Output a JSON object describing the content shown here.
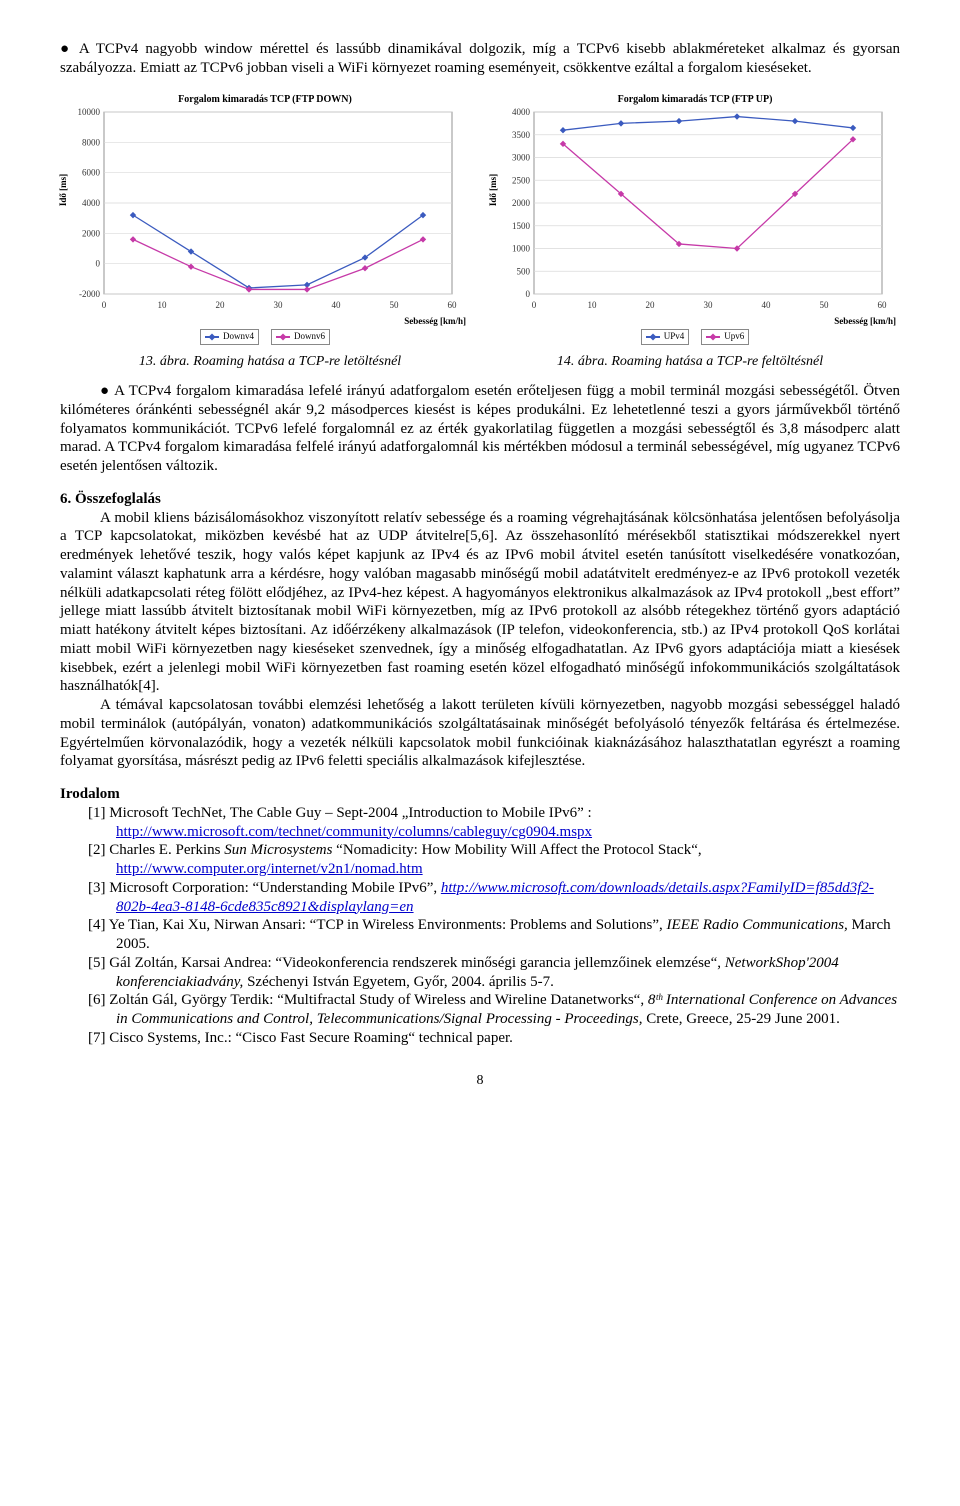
{
  "bullet1": "● A TCPv4 nagyobb window mérettel és lassúbb dinamikával dolgozik, míg a TCPv6 kisebb ablakméreteket alkalmaz és gyorsan szabályozza. Emiatt az TCPv6 jobban viseli a WiFi környezet roaming eseményeit, csökkentve ezáltal a forgalom kieséseket.",
  "chart_left": {
    "type": "line",
    "title": "Forgalom kimaradás TCP (FTP DOWN)",
    "ylabel": "Idő [ms]",
    "xlabel": "Sebesség [km/h]",
    "xlim": [
      0,
      60
    ],
    "xtick_step": 10,
    "ylim": [
      -2000,
      10000
    ],
    "ytick_step": 2000,
    "background_color": "#ffffff",
    "grid_color": "#d9d9d9",
    "axis_color": "#666666",
    "title_fontsize": 10,
    "label_fontsize": 9,
    "line_width": 1.3,
    "marker_size": 5,
    "series": [
      {
        "name": "Downv4",
        "color": "#3b5bbf",
        "x": [
          5,
          15,
          25,
          35,
          45,
          55
        ],
        "y": [
          3200,
          800,
          -1600,
          -1400,
          400,
          3200
        ]
      },
      {
        "name": "Downv6",
        "color": "#c63aa8",
        "x": [
          5,
          15,
          25,
          35,
          45,
          55
        ],
        "y": [
          1600,
          -200,
          -1700,
          -1700,
          -300,
          1600
        ]
      }
    ],
    "legend": [
      "Downv4",
      "Downv6"
    ]
  },
  "chart_right": {
    "type": "line",
    "title": "Forgalom kimaradás TCP (FTP UP)",
    "ylabel": "Idő [ms]",
    "xlabel": "Sebesség [km/h]",
    "xlim": [
      0,
      60
    ],
    "xtick_step": 10,
    "ylim": [
      0,
      4000
    ],
    "ytick_step": 500,
    "background_color": "#ffffff",
    "grid_color": "#d9d9d9",
    "axis_color": "#666666",
    "title_fontsize": 10,
    "label_fontsize": 9,
    "line_width": 1.3,
    "marker_size": 5,
    "series": [
      {
        "name": "UPv4",
        "color": "#3b5bbf",
        "x": [
          5,
          15,
          25,
          35,
          45,
          55
        ],
        "y": [
          3600,
          3750,
          3800,
          3900,
          3800,
          3650
        ]
      },
      {
        "name": "Upv6",
        "color": "#c63aa8",
        "x": [
          5,
          15,
          25,
          35,
          45,
          55
        ],
        "y": [
          3300,
          2200,
          1100,
          1000,
          2200,
          3400
        ]
      }
    ],
    "legend": [
      "UPv4",
      "Upv6"
    ]
  },
  "caption_left": "13. ábra. Roaming hatása a TCP-re letöltésnél",
  "caption_right": "14. ábra. Roaming hatása a TCP-re feltöltésnél",
  "bullet2": "● A TCPv4 forgalom kimaradása lefelé irányú adatforgalom esetén erőteljesen függ a mobil terminál mozgási sebességétől. Ötven kilóméteres óránkénti sebességnél akár 9,2 másodperces kiesést is képes produkálni. Ez lehetetlenné teszi a gyors járművekből történő folyamatos kommunikációt. TCPv6 lefelé forgalomnál ez az érték gyakorlatilag független a mozgási sebességtől és 3,8 másodperc alatt marad. A TCPv4 forgalom kimaradása felfelé irányú adatforgalomnál kis mértékben módosul a terminál sebességével, míg ugyanez TCPv6 esetén jelentősen változik.",
  "sec6_head": "6. Összefoglalás",
  "sec6_p1": "A mobil kliens bázisálomásokhoz viszonyított relatív sebessége és a roaming végrehajtásának kölcsönhatása jelentősen befolyásolja a TCP kapcsolatokat, miközben kevésbé hat az UDP átvitelre[5,6]. Az összehasonlító mérésekből statisztikai módszerekkel nyert eredmények lehetővé teszik, hogy valós képet kapjunk az IPv4 és az IPv6 mobil átvitel esetén tanúsított viselkedésére vonatkozóan, valamint választ kaphatunk arra a kérdésre, hogy valóban magasabb minőségű mobil adatátvitelt eredményez-e az IPv6 protokoll vezeték nélküli adatkapcsolati réteg fölött elődjéhez, az IPv4-hez képest. A hagyományos elektronikus alkalmazások az IPv4 protokoll „best effort” jellege miatt lassúbb átvitelt biztosítanak mobil WiFi környezetben, míg az IPv6 protokoll az alsóbb rétegekhez történő gyors adaptáció miatt hatékony átvitelt képes biztosítani. Az időérzékeny alkalmazások (IP telefon, videokonferencia, stb.) az IPv4 protokoll QoS korlátai miatt mobil WiFi környezetben nagy kieséseket szenvednek, így a minőség elfogadhatatlan. Az IPv6 gyors adaptációja miatt a kiesések kisebbek, ezért a jelenlegi mobil WiFi környezetben fast roaming esetén közel elfogadható minőségű infokommunikációs szolgáltatások használhatók[4].",
  "sec6_p2": "A témával kapcsolatosan további elemzési lehetőség a lakott területen kívüli környezetben, nagyobb mozgási sebességgel haladó mobil terminálok (autópályán, vonaton) adatkommunikációs szolgáltatásainak minőségét befolyásoló tényezők feltárása és értelmezése. Egyértelműen körvonalazódik, hogy a vezeték nélküli kapcsolatok mobil funkcióinak kiaknázásához halaszthatatlan egyrészt a roaming folyamat gyorsítása, másrészt pedig az IPv6 feletti speciális alkalmazások kifejlesztése.",
  "refs_head": "Irodalom",
  "references": [
    {
      "pre": "[1] Microsoft TechNet, The Cable Guy – Sept-2004 „Introduction to Mobile IPv6” :",
      "link": "http://www.microsoft.com/technet/community/columns/cableguy/cg0904.mspx",
      "post": ""
    },
    {
      "pre": "[2] Charles E. Perkins ",
      "ital": "Sun Microsystems",
      "mid": " “Nomadicity: How Mobility Will Affect the Protocol Stack“,",
      "link": "http://www.computer.org/internet/v2n1/nomad.htm",
      "post": ""
    },
    {
      "pre": "[3] Microsoft Corporation: “Understanding Mobile IPv6”, ",
      "link_it": "http://www.microsoft.com/downloads/details.aspx?FamilyID=f85dd3f2-802b-4ea3-8148-6cde835c8921&displaylang=en",
      "post": ""
    },
    {
      "pre": "[4] Ye Tian, Kai Xu, Nirwan Ansari: “TCP in Wireless Environments: Problems and Solutions”, ",
      "ital2": "IEEE Radio Communications,",
      "post": " March 2005."
    },
    {
      "pre": "[5] Gál Zoltán, Karsai Andrea: “Videokonferencia rendszerek minőségi garancia jellemzőinek elemzése“, ",
      "ital2": "NetworkShop'2004 konferenciakiadvány,",
      "post": " Széchenyi István Egyetem, Győr, 2004. április 5-7."
    },
    {
      "pre": "[6] Zoltán Gál, György Terdik: “Multifractal Study of Wireless and Wireline Datanetworks“, ",
      "ital2": "8ᵗʰ International Conference on Advances in Communications and Control, Telecommunications/Signal Processing - Proceedings,",
      "post": " Crete, Greece, 25-29 June 2001."
    },
    {
      "pre": "[7] Cisco Systems, Inc.: “Cisco Fast Secure Roaming“ technical paper.",
      "post": ""
    }
  ],
  "page_number": "8"
}
